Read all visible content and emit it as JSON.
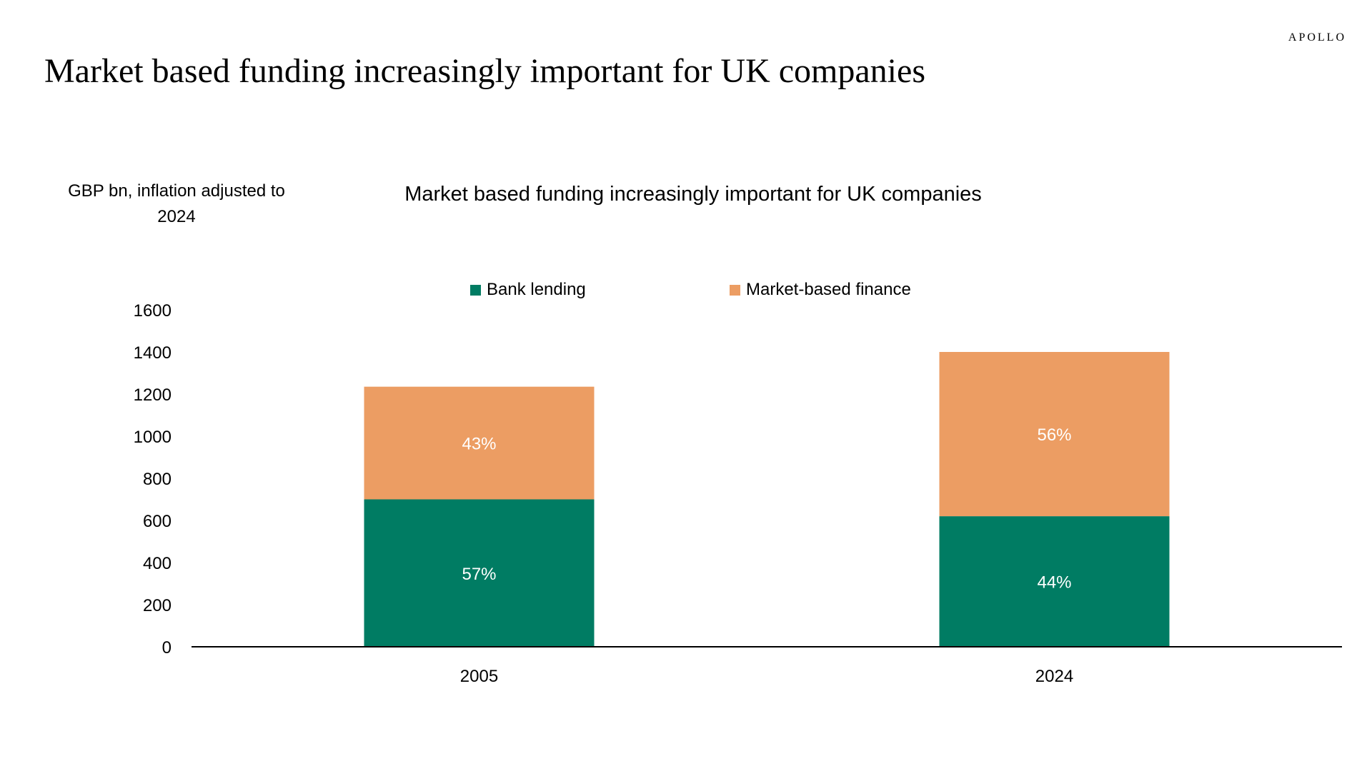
{
  "brand": "APOLLO",
  "page_title": "Market based funding increasingly important for UK companies",
  "colors": {
    "bank_lending": "#007C63",
    "market_based_finance": "#EC9D63",
    "axis": "#000000"
  },
  "chart_data": {
    "type": "bar",
    "stacked": true,
    "title": "Market based funding increasingly important for UK companies",
    "ylabel": "GBP bn, inflation adjusted to 2024",
    "xlabel": "",
    "categories": [
      "2005",
      "2024"
    ],
    "series": [
      {
        "name": "Bank lending",
        "values": [
          700,
          620
        ],
        "labels": [
          "57%",
          "44%"
        ]
      },
      {
        "name": "Market-based finance",
        "values": [
          535,
          780
        ],
        "labels": [
          "43%",
          "56%"
        ]
      }
    ],
    "ylim": [
      0,
      1600
    ],
    "yticks": [
      "0",
      "200",
      "400",
      "600",
      "800",
      "1000",
      "1200",
      "1400",
      "1600"
    ],
    "grid": false,
    "legend_position": "top"
  }
}
